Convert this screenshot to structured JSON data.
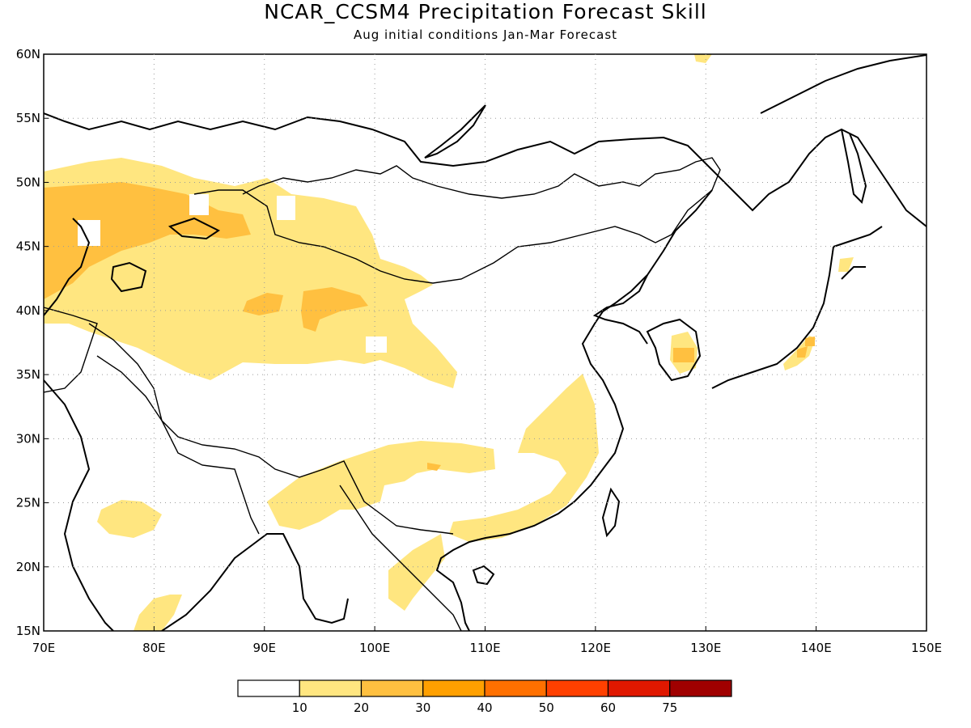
{
  "title": "NCAR_CCSM4 Precipitation Forecast Skill",
  "subtitle": "Aug initial conditions  Jan-Mar Forecast",
  "map": {
    "lon_range": [
      70,
      150
    ],
    "lat_range": [
      15,
      60
    ],
    "lon_ticks": [
      "70E",
      "80E",
      "90E",
      "100E",
      "110E",
      "120E",
      "130E",
      "140E",
      "150E"
    ],
    "lat_ticks": [
      "60N",
      "55N",
      "50N",
      "45N",
      "40N",
      "35N",
      "30N",
      "25N",
      "20N",
      "15N"
    ],
    "grid": "dotted",
    "coastline_color": "#000000"
  },
  "colorbar": {
    "labels": [
      "10",
      "20",
      "30",
      "40",
      "50",
      "60",
      "75"
    ],
    "colors": [
      "#ffffff",
      "#ffe680",
      "#ffc040",
      "#ffa000",
      "#ff7000",
      "#ff4000",
      "#e01800",
      "#a00000"
    ]
  }
}
